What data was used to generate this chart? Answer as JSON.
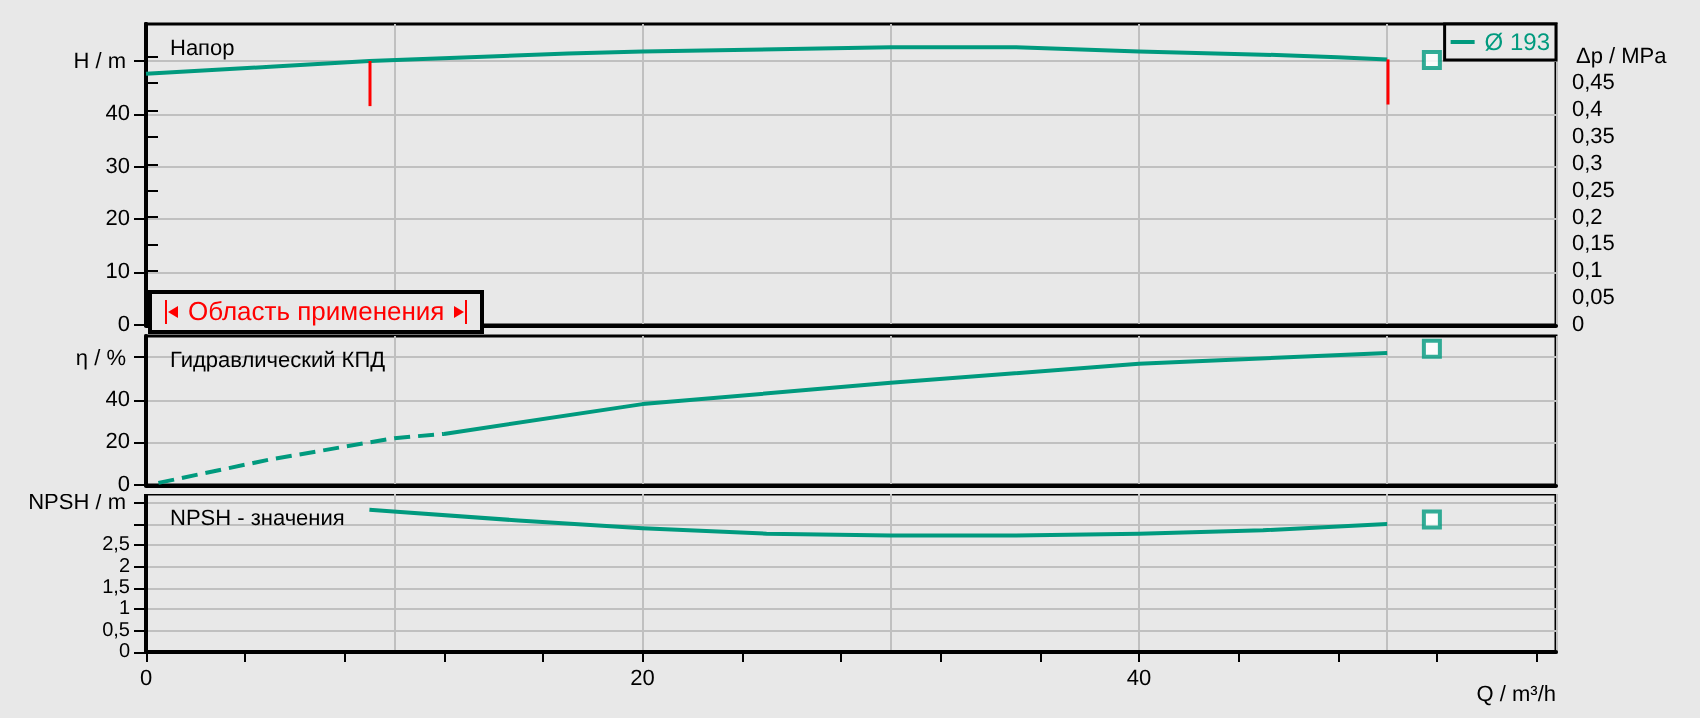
{
  "chart_data": [
    {
      "type": "line",
      "title": "Напор",
      "ylabel": "H / m",
      "y2label": "Δp / MPa",
      "xlim": [
        0,
        56.8
      ],
      "xticks": [
        0,
        20,
        40
      ],
      "ylim": [
        0,
        57
      ],
      "yticks": [
        0,
        10,
        20,
        30,
        40,
        {
          "value": 50,
          "label": null
        }
      ],
      "y2lim": [
        0,
        0.56
      ],
      "y2ticks": [
        0,
        {
          "value": 0.05,
          "label": "0,05"
        },
        {
          "value": 0.1,
          "label": "0,1"
        },
        {
          "value": 0.15,
          "label": "0,15"
        },
        {
          "value": 0.2,
          "label": "0,2"
        },
        {
          "value": 0.25,
          "label": "0,25"
        },
        {
          "value": 0.3,
          "label": "0,3"
        },
        {
          "value": 0.35,
          "label": "0,35"
        },
        {
          "value": 0.4,
          "label": "0,4"
        },
        {
          "value": 0.45,
          "label": "0,45"
        },
        {
          "value": 0.5,
          "label": null
        }
      ],
      "tick_labels": "y",
      "grid": true,
      "legend": "top right",
      "marker": "none",
      "series": [
        {
          "name": "Ø 193",
          "color": "#009a7e",
          "x": [
            0,
            5,
            9,
            17,
            20,
            30,
            35,
            40,
            45,
            48,
            50
          ],
          "values": [
            47.6,
            48.9,
            50,
            51.4,
            51.8,
            52.6,
            52.6,
            51.8,
            51.2,
            50.7,
            50.3
          ]
        },
        {
          "type": "scatter",
          "marker": "square",
          "color": "#009a7e",
          "x": [
            51.8
          ],
          "values": [
            50.2
          ]
        }
      ],
      "ref_lines": [
        {
          "axis": "x",
          "value": 9,
          "color": "#ff0000"
        },
        {
          "axis": "x",
          "value": 50,
          "color": "#ff0000"
        }
      ],
      "annotations": [
        "Область применения"
      ]
    },
    {
      "type": "line",
      "title": "Гидравлический КПД",
      "ylabel": "η / %",
      "xlim": [
        0,
        56.8
      ],
      "xticks": [
        0,
        20,
        40
      ],
      "ylim": [
        0,
        70
      ],
      "yticks": [
        0,
        20,
        40,
        {
          "value": 60,
          "label": null
        }
      ],
      "tick_labels": "y",
      "grid": true,
      "marker": "none",
      "series": [
        {
          "color": "#009a7e",
          "line_style": "dashed",
          "x": [
            0.5,
            5,
            10,
            12
          ],
          "values": [
            1,
            12,
            22,
            24
          ]
        },
        {
          "color": "#009a7e",
          "x": [
            12,
            20,
            30,
            40,
            46,
            50
          ],
          "values": [
            24,
            38,
            48,
            57,
            60,
            62
          ]
        },
        {
          "type": "scatter",
          "marker": "square",
          "color": "#009a7e",
          "x": [
            51.8
          ],
          "values": [
            64
          ]
        }
      ]
    },
    {
      "type": "line",
      "title": "NPSH - значения",
      "ylabel": "NPSH / m",
      "xlabel": "Q / m³/h",
      "xlim": [
        0,
        56.8
      ],
      "xticks": [
        0,
        {
          "value": 4,
          "label": null
        },
        {
          "value": 8,
          "label": null
        },
        {
          "value": 12,
          "label": null
        },
        {
          "value": 16,
          "label": null
        },
        20,
        {
          "value": 24,
          "label": null
        },
        {
          "value": 28,
          "label": null
        },
        {
          "value": 32,
          "label": null
        },
        {
          "value": 36,
          "label": null
        },
        40,
        {
          "value": 44,
          "label": null
        },
        {
          "value": 48,
          "label": null
        },
        {
          "value": 52,
          "label": null
        },
        {
          "value": 56,
          "label": null
        }
      ],
      "ylim": [
        0,
        3.7
      ],
      "yticks": [
        0,
        {
          "value": 0.5,
          "label": "0,5"
        },
        1,
        {
          "value": 1.5,
          "label": "1,5"
        },
        2,
        {
          "value": 2.5,
          "label": "2,5"
        },
        {
          "value": 3,
          "label": null
        },
        {
          "value": 3.5,
          "label": null
        }
      ],
      "grid": true,
      "marker": "none",
      "series": [
        {
          "color": "#009a7e",
          "x": [
            9,
            15,
            20,
            25,
            30,
            35,
            40,
            45,
            50
          ],
          "values": [
            3.33,
            3.08,
            2.9,
            2.77,
            2.73,
            2.73,
            2.77,
            2.85,
            3.0
          ]
        },
        {
          "type": "scatter",
          "marker": "square",
          "color": "#009a7e",
          "x": [
            51.8
          ],
          "values": [
            3.1
          ]
        }
      ]
    }
  ]
}
